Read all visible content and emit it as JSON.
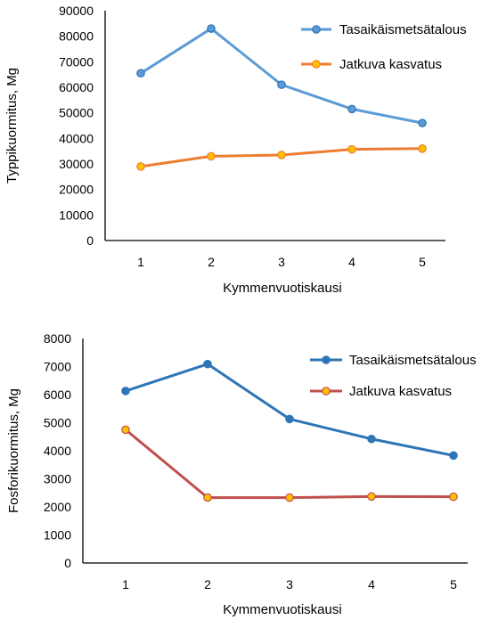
{
  "chart_data": [
    {
      "type": "line",
      "x": [
        1,
        2,
        3,
        4,
        5
      ],
      "xlabel": "Kymmenvuotiskausi",
      "ylabel": "Typpikuormitus, Mg",
      "ylim": [
        0,
        90000
      ],
      "yticks": [
        0,
        10000,
        20000,
        30000,
        40000,
        50000,
        60000,
        70000,
        80000,
        90000
      ],
      "grid": false,
      "legend": "top-right",
      "series": [
        {
          "name": "Tasaikäismetsätalous",
          "values": [
            65500,
            83000,
            61000,
            51500,
            46000
          ],
          "color": "#5B9BD5",
          "marker_fill": "#5B9BD5",
          "marker_stroke": "#2E75B6"
        },
        {
          "name": "Jatkuva kasvatus",
          "values": [
            29000,
            33000,
            33500,
            35700,
            36000
          ],
          "color": "#ED7D31",
          "marker_fill": "#FFC000",
          "marker_stroke": "#ED7D31"
        }
      ]
    },
    {
      "type": "line",
      "x": [
        1,
        2,
        3,
        4,
        5
      ],
      "xlabel": "Kymmenvuotiskausi",
      "ylabel": "Fosforikuormitus, Mg",
      "ylim": [
        0,
        8000
      ],
      "yticks": [
        0,
        1000,
        2000,
        3000,
        4000,
        5000,
        6000,
        7000,
        8000
      ],
      "grid": false,
      "legend": "top-right",
      "series": [
        {
          "name": "Tasaikäismetsätalous",
          "values": [
            6130,
            7090,
            5130,
            4420,
            3830
          ],
          "color": "#2E75B6",
          "marker_fill": "#2E75B6",
          "marker_stroke": "#2E75B6"
        },
        {
          "name": "Jatkuva kasvatus",
          "values": [
            4750,
            2330,
            2330,
            2370,
            2360
          ],
          "color": "#C0504D",
          "marker_fill": "#FFC000",
          "marker_stroke": "#C0504D"
        }
      ]
    }
  ]
}
